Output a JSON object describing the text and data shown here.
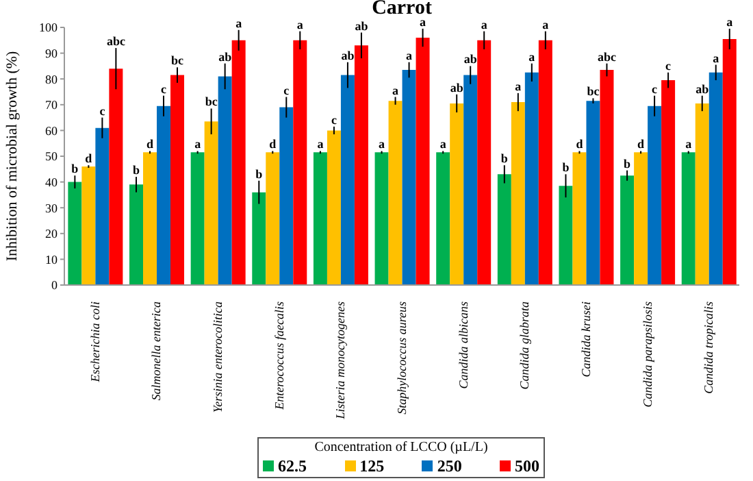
{
  "chart_data": {
    "type": "bar",
    "title": "Carrot",
    "ylabel": "Inhibition of microbial growth (%)",
    "legend_title": "Concentration of LCCO (µL/L)",
    "categories": [
      "Escherichia coli",
      "Salmonella enterica",
      "Yersinia enterocolitica",
      "Enterococcus faecalis",
      "Listeria monocytogenes",
      "Staphylococcus aureus",
      "Candida albicans",
      "Candida glabrata",
      "Candida krusei",
      "Candida parapsilosis",
      "Candida tropicalis"
    ],
    "series": [
      {
        "name": "62.5",
        "color": "#00b050",
        "values": [
          40,
          39,
          51.5,
          36,
          51.5,
          51.5,
          51.5,
          43,
          38.5,
          42.5,
          51.5
        ],
        "errors": [
          2.5,
          3,
          0.5,
          4.5,
          0.5,
          0.5,
          0.5,
          3.5,
          4.5,
          2,
          0.5
        ],
        "value_labels": [
          "b",
          "b",
          "a",
          "b",
          "a",
          "a",
          "a",
          "b",
          "b",
          "b",
          "a"
        ]
      },
      {
        "name": "125",
        "color": "#ffc000",
        "values": [
          46,
          51.5,
          63.5,
          51.5,
          60,
          71.5,
          70.5,
          71,
          51.5,
          51.5,
          70.5
        ],
        "errors": [
          0.5,
          0.5,
          5,
          0.5,
          1.5,
          1.5,
          3.5,
          3.5,
          0.5,
          0.5,
          3
        ],
        "value_labels": [
          "d",
          "d",
          "bc",
          "d",
          "c",
          "a",
          "ab",
          "a",
          "d",
          "d",
          "ab"
        ]
      },
      {
        "name": "250",
        "color": "#0070c0",
        "values": [
          61,
          69.5,
          81,
          69,
          81.5,
          83.5,
          81.5,
          82.5,
          71.5,
          69.5,
          82.5
        ],
        "errors": [
          4,
          4,
          5,
          4,
          5,
          3,
          3.5,
          3.5,
          1,
          4,
          3
        ],
        "value_labels": [
          "c",
          "c",
          "ab",
          "c",
          "ab",
          "a",
          "ab",
          "a",
          "bc",
          "c",
          "a"
        ]
      },
      {
        "name": "500",
        "color": "#ff0000",
        "values": [
          84,
          81.5,
          95,
          95,
          93,
          96,
          95,
          95,
          83.5,
          79.5,
          95.5
        ],
        "errors": [
          8,
          3,
          4,
          3.5,
          5,
          3.5,
          3.5,
          3.5,
          2.5,
          3,
          4
        ],
        "value_labels": [
          "abc",
          "bc",
          "a",
          "a",
          "ab",
          "a",
          "a",
          "a",
          "abc",
          "c",
          "a"
        ]
      }
    ],
    "ylim": [
      0,
      100
    ],
    "yticks": [
      0,
      10,
      20,
      30,
      40,
      50,
      60,
      70,
      80,
      90,
      100
    ],
    "legend": "bottom"
  }
}
